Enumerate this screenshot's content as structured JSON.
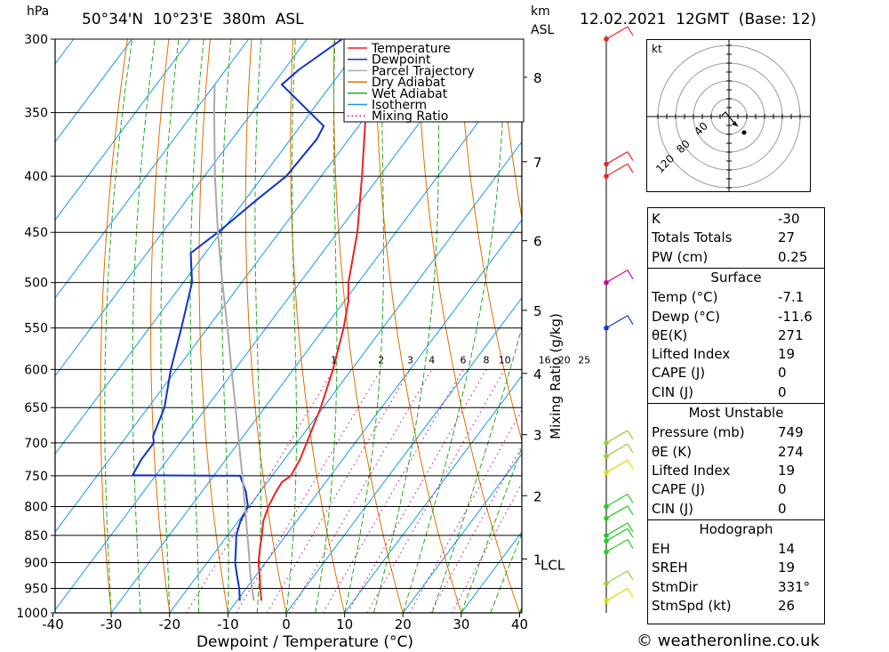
{
  "header": {
    "hpa_unit": "hPa",
    "location": "50°34'N  10°23'E  380m  ASL",
    "km_unit": "km",
    "asl_label": "ASL",
    "datetime": "12.02.2021  12GMT  (Base: 12)"
  },
  "chart_data": {
    "type": "line",
    "subtype": "skew-T log-P thermodynamic diagram",
    "xlabel": "Dewpoint / Temperature (°C)",
    "ylabel_left": "hPa",
    "ylabel_right": "Mixing Ratio (g/kg)",
    "xlim": [
      -40,
      40
    ],
    "ylim": [
      1000,
      300
    ],
    "x_ticks": [
      "-40",
      "-30",
      "-20",
      "-10",
      "0",
      "10",
      "20",
      "30",
      "40"
    ],
    "x_tick_values": [
      -40,
      -30,
      -20,
      -10,
      0,
      10,
      20,
      30,
      40
    ],
    "pressure_levels": [
      300,
      350,
      400,
      450,
      500,
      550,
      600,
      650,
      700,
      750,
      800,
      850,
      900,
      950,
      1000
    ],
    "height_ticks": [
      {
        "label": "8",
        "p": 325
      },
      {
        "label": "7",
        "p": 388
      },
      {
        "label": "6",
        "p": 458
      },
      {
        "label": "5",
        "p": 530
      },
      {
        "label": "4",
        "p": 605
      },
      {
        "label": "3",
        "p": 688
      },
      {
        "label": "2",
        "p": 782
      },
      {
        "label": "1",
        "p": 893
      }
    ],
    "lcl_label": "LCL",
    "lcl_p": 902,
    "mixing_ratio_labels": [
      "1",
      "2",
      "3",
      "4",
      "6",
      "8",
      "10",
      "16",
      "20",
      "25"
    ],
    "mixing_ratio_values": [
      1,
      2,
      3,
      4,
      6,
      8,
      10,
      16,
      20,
      25
    ],
    "legend": [
      {
        "name": "Temperature",
        "color": "#ee2222",
        "style": "solid"
      },
      {
        "name": "Dewpoint",
        "color": "#1133cc",
        "style": "solid"
      },
      {
        "name": "Parcel Trajectory",
        "color": "#aaaaaa",
        "style": "solid"
      },
      {
        "name": "Dry Adiabat",
        "color": "#e07000",
        "style": "solid"
      },
      {
        "name": "Wet Adiabat",
        "color": "#22aa22",
        "style": "solid"
      },
      {
        "name": "Isotherm",
        "color": "#1199ee",
        "style": "solid"
      },
      {
        "name": "Mixing Ratio",
        "color": "#cc0077",
        "style": "dotted"
      }
    ],
    "legend_position": "top-right",
    "series": [
      {
        "name": "Temperature",
        "color": "#ee2222",
        "points": [
          [
            975,
            -5.8
          ],
          [
            950,
            -7.6
          ],
          [
            925,
            -9.3
          ],
          [
            900,
            -11.2
          ],
          [
            875,
            -12.7
          ],
          [
            850,
            -14.1
          ],
          [
            825,
            -15.7
          ],
          [
            800,
            -16.7
          ],
          [
            775,
            -17.3
          ],
          [
            760,
            -17.5
          ],
          [
            750,
            -16.8
          ],
          [
            725,
            -17.3
          ],
          [
            700,
            -18.3
          ],
          [
            650,
            -20.4
          ],
          [
            600,
            -23.2
          ],
          [
            550,
            -26.7
          ],
          [
            520,
            -29.3
          ],
          [
            500,
            -31.7
          ],
          [
            450,
            -36.6
          ],
          [
            400,
            -43.0
          ],
          [
            350,
            -50.5
          ],
          [
            325,
            -53.5
          ],
          [
            300,
            -58.0
          ]
        ]
      },
      {
        "name": "Dewpoint",
        "color": "#1133cc",
        "points": [
          [
            975,
            -9.5
          ],
          [
            950,
            -11.2
          ],
          [
            925,
            -13.2
          ],
          [
            900,
            -15.2
          ],
          [
            875,
            -16.8
          ],
          [
            850,
            -18.5
          ],
          [
            825,
            -19.6
          ],
          [
            800,
            -20.2
          ],
          [
            775,
            -22.5
          ],
          [
            750,
            -25.5
          ],
          [
            749,
            -44.0
          ],
          [
            725,
            -44.5
          ],
          [
            700,
            -44.5
          ],
          [
            690,
            -45.5
          ],
          [
            650,
            -47.2
          ],
          [
            600,
            -51.0
          ],
          [
            550,
            -54.5
          ],
          [
            500,
            -58.5
          ],
          [
            470,
            -62.5
          ],
          [
            450,
            -60.5
          ],
          [
            420,
            -58.0
          ],
          [
            400,
            -56.0
          ],
          [
            370,
            -55.5
          ],
          [
            360,
            -56.0
          ],
          [
            330,
            -68.5
          ],
          [
            320,
            -67.5
          ],
          [
            300,
            -64.0
          ]
        ]
      },
      {
        "name": "Parcel Trajectory",
        "color": "#aaaaaa",
        "points": [
          [
            975,
            -7.1
          ],
          [
            950,
            -9.0
          ],
          [
            925,
            -10.9
          ],
          [
            902,
            -12.6
          ],
          [
            875,
            -14.6
          ],
          [
            850,
            -16.6
          ],
          [
            800,
            -20.7
          ],
          [
            750,
            -25.1
          ],
          [
            700,
            -29.9
          ],
          [
            650,
            -35.0
          ],
          [
            600,
            -40.6
          ],
          [
            550,
            -46.6
          ],
          [
            500,
            -53.3
          ],
          [
            450,
            -60.5
          ],
          [
            400,
            -68.2
          ],
          [
            350,
            -76.5
          ],
          [
            330,
            -80.0
          ]
        ]
      }
    ]
  },
  "hodograph": {
    "unit_label": "kt",
    "ring_labels": [
      "40",
      "80",
      "120"
    ]
  },
  "indices": {
    "top": [
      {
        "key": "K",
        "value": "-30"
      },
      {
        "key": "Totals Totals",
        "value": "27"
      },
      {
        "key": "PW (cm)",
        "value": "0.25"
      }
    ],
    "surface_title": "Surface",
    "surface": [
      {
        "key": "Temp (°C)",
        "value": "-7.1"
      },
      {
        "key": "Dewp (°C)",
        "value": "-11.6"
      },
      {
        "key": "θE(K)",
        "value": "271"
      },
      {
        "key": "Lifted Index",
        "value": "19"
      },
      {
        "key": "CAPE (J)",
        "value": "0"
      },
      {
        "key": "CIN (J)",
        "value": "0"
      }
    ],
    "unstable_title": "Most Unstable",
    "unstable": [
      {
        "key": "Pressure (mb)",
        "value": "749"
      },
      {
        "key": "θE (K)",
        "value": "274"
      },
      {
        "key": "Lifted Index",
        "value": "19"
      },
      {
        "key": "CAPE (J)",
        "value": "0"
      },
      {
        "key": "CIN (J)",
        "value": "0"
      }
    ],
    "hodo_title": "Hodograph",
    "hodo": [
      {
        "key": "EH",
        "value": "14"
      },
      {
        "key": "SREH",
        "value": "19"
      },
      {
        "key": "StmDir",
        "value": "331°"
      },
      {
        "key": "StmSpd (kt)",
        "value": "26"
      }
    ]
  },
  "footer": {
    "copyright": "© weatheronline.co.uk"
  },
  "colors": {
    "temperature": "#ee2222",
    "dewpoint": "#1133cc",
    "parcel": "#aaaaaa",
    "dry_adiabat": "#e07000",
    "wet_adiabat": "#22aa22",
    "isotherm": "#1199ee",
    "mixing_ratio": "#cc0077"
  }
}
